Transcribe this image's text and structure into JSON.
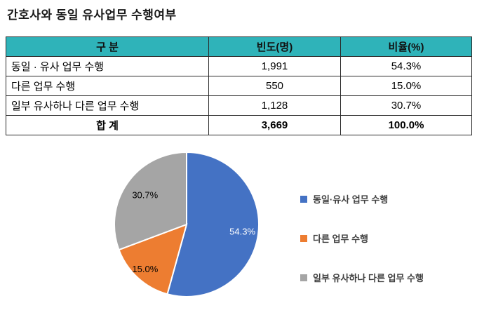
{
  "page": {
    "title": "간호사와 동일 유사업무 수행여부"
  },
  "table": {
    "headers": [
      "구 분",
      "빈도(명)",
      "비율(%)"
    ],
    "rows": [
      {
        "label": "동일 · 유사 업무 수행",
        "freq": "1,991",
        "pct": "54.3%"
      },
      {
        "label": "다른 업무 수행",
        "freq": "550",
        "pct": "15.0%"
      },
      {
        "label": "일부 유사하나 다른 업무 수행",
        "freq": "1,128",
        "pct": "30.7%"
      }
    ],
    "total": {
      "label": "합 계",
      "freq": "3,669",
      "pct": "100.0%"
    }
  },
  "chart_data": {
    "type": "pie",
    "categories": [
      "동일·유사 업무 수행",
      "다른 업무 수행",
      "일부 유사하나 다른 업무 수행"
    ],
    "values": [
      54.3,
      15.0,
      30.7
    ],
    "data_labels": [
      "54.3%",
      "15.0%",
      "30.7%"
    ],
    "colors": [
      "#4472C4",
      "#ED7D31",
      "#A5A5A5"
    ],
    "label_colors": [
      "#FFFFFF",
      "#000000",
      "#000000"
    ],
    "label_radius": [
      0.78,
      0.85,
      0.7
    ],
    "start_angle": 0,
    "direction": "clockwise",
    "legend_position": "right"
  },
  "style": {
    "header_bg": "#2FB3B9",
    "border_color": "#2b2b2b",
    "slice_gap_color": "#FFFFFF"
  }
}
